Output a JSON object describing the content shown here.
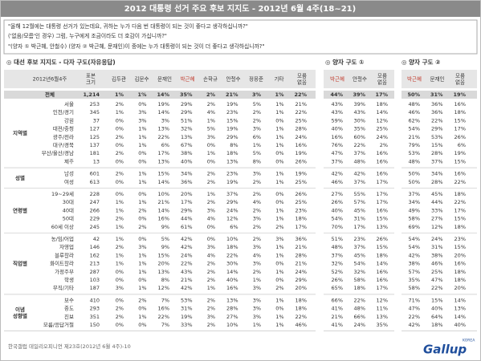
{
  "header": {
    "title": "2012 대통령 선거 주요 후보 지지도 - 2012년 6월 4주(18~21)"
  },
  "questions": [
    "\"올해 12월에는 대통령 선거가 있는데요, 귀하는 누가 다음 번 대통령이 되는 것이 좋다고 생각하십니까?\"",
    "('없음/모름'인 경우) 그럼, 누구에게 조금이라도 더 호감이 가십니까?\"",
    "\"(양자 ① 박근혜, 안철수) (양자 ② 박근혜, 문재인)이 중에는 누가 대통령이 되는 것이 더 좋다고 생각하십니까?\""
  ],
  "sections": [
    "◎ 대선 후보 지지도 - 다자 구도(자유응답)",
    "◎ 양자 구도 ①",
    "◎ 양자 구도 ②"
  ],
  "columns": {
    "corner": "2012년6월4주",
    "sample": "표본 크기",
    "multi": [
      "김두관",
      "김문수",
      "문재인",
      "박근혜",
      "손학규",
      "안철수",
      "정몽준",
      "기타",
      "모름 없음"
    ],
    "pair1": [
      "박근혜",
      "안철수",
      "모름 없음"
    ],
    "pair2": [
      "박근혜",
      "문재인",
      "모름 없음"
    ]
  },
  "total": {
    "label": "전체",
    "n": "1,214",
    "multi": [
      "1%",
      "1%",
      "14%",
      "35%",
      "2%",
      "21%",
      "3%",
      "1%",
      "22%"
    ],
    "pair1": [
      "44%",
      "39%",
      "17%"
    ],
    "pair2": [
      "50%",
      "31%",
      "19%"
    ]
  },
  "groups": [
    {
      "label": "지역별",
      "rows": [
        {
          "label": "서울",
          "n": "253",
          "multi": [
            "2%",
            "0%",
            "19%",
            "29%",
            "2%",
            "19%",
            "5%",
            "1%",
            "21%"
          ],
          "pair1": [
            "43%",
            "39%",
            "18%"
          ],
          "pair2": [
            "48%",
            "36%",
            "16%"
          ]
        },
        {
          "label": "인천/경기",
          "n": "345",
          "multi": [
            "1%",
            "3%",
            "14%",
            "29%",
            "4%",
            "23%",
            "2%",
            "1%",
            "22%"
          ],
          "pair1": [
            "43%",
            "43%",
            "14%"
          ],
          "pair2": [
            "46%",
            "36%",
            "18%"
          ]
        },
        {
          "label": "강원",
          "n": "37",
          "multi": [
            "0%",
            "3%",
            "3%",
            "51%",
            "1%",
            "15%",
            "2%",
            "0%",
            "25%"
          ],
          "pair1": [
            "59%",
            "30%",
            "12%"
          ],
          "pair2": [
            "62%",
            "22%",
            "15%"
          ]
        },
        {
          "label": "대전/충청",
          "n": "127",
          "multi": [
            "0%",
            "1%",
            "13%",
            "32%",
            "5%",
            "19%",
            "3%",
            "1%",
            "28%"
          ],
          "pair1": [
            "40%",
            "35%",
            "25%"
          ],
          "pair2": [
            "54%",
            "29%",
            "17%"
          ]
        },
        {
          "label": "광주/전라",
          "n": "125",
          "multi": [
            "2%",
            "1%",
            "22%",
            "13%",
            "3%",
            "29%",
            "6%",
            "1%",
            "24%"
          ],
          "pair1": [
            "16%",
            "60%",
            "24%"
          ],
          "pair2": [
            "21%",
            "53%",
            "26%"
          ]
        },
        {
          "label": "대구/경북",
          "n": "137",
          "multi": [
            "0%",
            "1%",
            "6%",
            "67%",
            "0%",
            "8%",
            "1%",
            "1%",
            "16%"
          ],
          "pair1": [
            "76%",
            "22%",
            "2%"
          ],
          "pair2": [
            "79%",
            "15%",
            "6%"
          ]
        },
        {
          "label": "부산/울산/경남",
          "n": "181",
          "multi": [
            "2%",
            "0%",
            "17%",
            "38%",
            "1%",
            "18%",
            "5%",
            "0%",
            "19%"
          ],
          "pair1": [
            "47%",
            "37%",
            "16%"
          ],
          "pair2": [
            "53%",
            "28%",
            "19%"
          ]
        },
        {
          "label": "제주",
          "n": "13",
          "multi": [
            "0%",
            "0%",
            "13%",
            "40%",
            "0%",
            "13%",
            "8%",
            "0%",
            "26%"
          ],
          "pair1": [
            "37%",
            "48%",
            "16%"
          ],
          "pair2": [
            "48%",
            "37%",
            "15%"
          ]
        }
      ]
    },
    {
      "label": "성별",
      "rows": [
        {
          "label": "남성",
          "n": "601",
          "multi": [
            "2%",
            "1%",
            "15%",
            "34%",
            "2%",
            "23%",
            "3%",
            "1%",
            "19%"
          ],
          "pair1": [
            "42%",
            "42%",
            "16%"
          ],
          "pair2": [
            "50%",
            "34%",
            "16%"
          ]
        },
        {
          "label": "여성",
          "n": "613",
          "multi": [
            "0%",
            "1%",
            "14%",
            "36%",
            "2%",
            "19%",
            "2%",
            "1%",
            "25%"
          ],
          "pair1": [
            "46%",
            "37%",
            "17%"
          ],
          "pair2": [
            "50%",
            "28%",
            "22%"
          ]
        }
      ]
    },
    {
      "label": "연령별",
      "rows": [
        {
          "label": "19~29세",
          "n": "228",
          "multi": [
            "0%",
            "0%",
            "10%",
            "20%",
            "1%",
            "37%",
            "2%",
            "0%",
            "26%"
          ],
          "pair1": [
            "27%",
            "55%",
            "17%"
          ],
          "pair2": [
            "37%",
            "45%",
            "18%"
          ]
        },
        {
          "label": "30대",
          "n": "247",
          "multi": [
            "1%",
            "1%",
            "21%",
            "17%",
            "2%",
            "29%",
            "4%",
            "0%",
            "25%"
          ],
          "pair1": [
            "26%",
            "57%",
            "17%"
          ],
          "pair2": [
            "34%",
            "44%",
            "22%"
          ]
        },
        {
          "label": "40대",
          "n": "266",
          "multi": [
            "1%",
            "2%",
            "14%",
            "29%",
            "3%",
            "24%",
            "2%",
            "1%",
            "23%"
          ],
          "pair1": [
            "40%",
            "45%",
            "16%"
          ],
          "pair2": [
            "49%",
            "33%",
            "17%"
          ]
        },
        {
          "label": "50대",
          "n": "229",
          "multi": [
            "2%",
            "0%",
            "16%",
            "44%",
            "4%",
            "12%",
            "3%",
            "1%",
            "18%"
          ],
          "pair1": [
            "54%",
            "31%",
            "15%"
          ],
          "pair2": [
            "58%",
            "27%",
            "15%"
          ]
        },
        {
          "label": "60세 이상",
          "n": "245",
          "multi": [
            "1%",
            "2%",
            "9%",
            "61%",
            "0%",
            "6%",
            "2%",
            "2%",
            "17%"
          ],
          "pair1": [
            "70%",
            "17%",
            "13%"
          ],
          "pair2": [
            "69%",
            "12%",
            "18%"
          ]
        }
      ]
    },
    {
      "label": "직업별",
      "rows": [
        {
          "label": "농/임/어업",
          "n": "42",
          "multi": [
            "1%",
            "0%",
            "5%",
            "42%",
            "0%",
            "10%",
            "2%",
            "3%",
            "36%"
          ],
          "pair1": [
            "51%",
            "23%",
            "26%"
          ],
          "pair2": [
            "54%",
            "24%",
            "23%"
          ]
        },
        {
          "label": "자영업",
          "n": "146",
          "multi": [
            "2%",
            "3%",
            "9%",
            "42%",
            "3%",
            "18%",
            "3%",
            "1%",
            "21%"
          ],
          "pair1": [
            "48%",
            "37%",
            "15%"
          ],
          "pair2": [
            "54%",
            "31%",
            "15%"
          ]
        },
        {
          "label": "블루칼라",
          "n": "162",
          "multi": [
            "1%",
            "1%",
            "15%",
            "24%",
            "4%",
            "22%",
            "4%",
            "1%",
            "28%"
          ],
          "pair1": [
            "37%",
            "45%",
            "18%"
          ],
          "pair2": [
            "42%",
            "38%",
            "20%"
          ]
        },
        {
          "label": "화이트칼라",
          "n": "213",
          "multi": [
            "1%",
            "1%",
            "20%",
            "22%",
            "2%",
            "30%",
            "3%",
            "0%",
            "21%"
          ],
          "pair1": [
            "32%",
            "54%",
            "14%"
          ],
          "pair2": [
            "38%",
            "46%",
            "16%"
          ]
        },
        {
          "label": "가정주부",
          "n": "287",
          "multi": [
            "0%",
            "1%",
            "13%",
            "43%",
            "2%",
            "14%",
            "2%",
            "1%",
            "24%"
          ],
          "pair1": [
            "52%",
            "32%",
            "16%"
          ],
          "pair2": [
            "57%",
            "25%",
            "18%"
          ]
        },
        {
          "label": "학생",
          "n": "103",
          "multi": [
            "0%",
            "0%",
            "8%",
            "21%",
            "2%",
            "40%",
            "1%",
            "0%",
            "29%"
          ],
          "pair1": [
            "26%",
            "58%",
            "16%"
          ],
          "pair2": [
            "35%",
            "47%",
            "18%"
          ]
        },
        {
          "label": "무직/기타",
          "n": "187",
          "multi": [
            "3%",
            "1%",
            "12%",
            "42%",
            "1%",
            "16%",
            "3%",
            "2%",
            "20%"
          ],
          "pair1": [
            "65%",
            "18%",
            "17%"
          ],
          "pair2": [
            "58%",
            "22%",
            "20%"
          ]
        }
      ]
    },
    {
      "label": "이념 성향별",
      "rows": [
        {
          "label": "보수",
          "n": "410",
          "multi": [
            "0%",
            "2%",
            "7%",
            "53%",
            "2%",
            "13%",
            "3%",
            "1%",
            "18%"
          ],
          "pair1": [
            "66%",
            "22%",
            "12%"
          ],
          "pair2": [
            "71%",
            "15%",
            "14%"
          ]
        },
        {
          "label": "중도",
          "n": "293",
          "multi": [
            "2%",
            "0%",
            "16%",
            "31%",
            "2%",
            "28%",
            "3%",
            "0%",
            "18%"
          ],
          "pair1": [
            "41%",
            "48%",
            "11%"
          ],
          "pair2": [
            "47%",
            "40%",
            "13%"
          ]
        },
        {
          "label": "진보",
          "n": "351",
          "multi": [
            "2%",
            "1%",
            "22%",
            "19%",
            "3%",
            "27%",
            "3%",
            "1%",
            "22%"
          ],
          "pair1": [
            "21%",
            "66%",
            "13%"
          ],
          "pair2": [
            "22%",
            "64%",
            "14%"
          ]
        },
        {
          "label": "모름/응답거절",
          "n": "150",
          "multi": [
            "0%",
            "0%",
            "7%",
            "33%",
            "2%",
            "10%",
            "1%",
            "1%",
            "46%"
          ],
          "pair1": [
            "41%",
            "24%",
            "35%"
          ],
          "pair2": [
            "42%",
            "18%",
            "40%"
          ]
        }
      ]
    }
  ],
  "footer": "한국갤럽 데일리오피니언 제23호(2012년 6월 4주)-10",
  "logo": {
    "text": "Gallup",
    "sub": "KOREA"
  }
}
